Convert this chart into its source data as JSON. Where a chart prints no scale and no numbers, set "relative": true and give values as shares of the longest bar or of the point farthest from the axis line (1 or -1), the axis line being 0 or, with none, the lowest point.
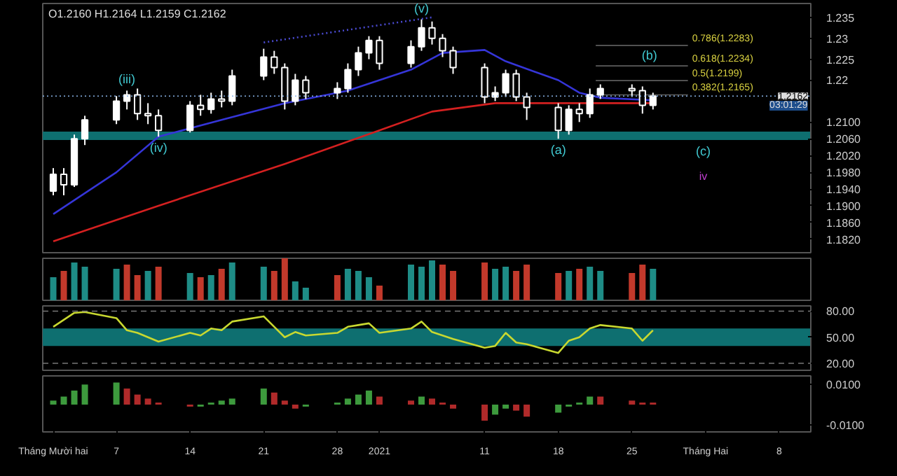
{
  "chart_data": [
    {
      "type": "candlestick",
      "title": "O1.2160 H1.2164 L1.2159 C1.2162",
      "color": "#ffffff",
      "x": [
        "2020-12-01",
        "2020-12-02",
        "2020-12-03",
        "2020-12-04",
        "2020-12-07",
        "2020-12-08",
        "2020-12-09",
        "2020-12-10",
        "2020-12-11",
        "2020-12-14",
        "2020-12-15",
        "2020-12-16",
        "2020-12-17",
        "2020-12-18",
        "2020-12-21",
        "2020-12-22",
        "2020-12-23",
        "2020-12-24",
        "2020-12-25",
        "2020-12-28",
        "2020-12-29",
        "2020-12-30",
        "2020-12-31",
        "2021-01-01",
        "2021-01-04",
        "2021-01-05",
        "2021-01-06",
        "2021-01-07",
        "2021-01-08",
        "2021-01-11",
        "2021-01-12",
        "2021-01-13",
        "2021-01-14",
        "2021-01-15",
        "2021-01-18",
        "2021-01-19",
        "2021-01-20",
        "2021-01-21",
        "2021-01-22",
        "2021-01-25",
        "2021-01-26",
        "2021-01-27"
      ],
      "ohlc": [
        [
          1.1935,
          1.199,
          1.1925,
          1.1975
        ],
        [
          1.1975,
          1.199,
          1.1925,
          1.195
        ],
        [
          1.195,
          1.207,
          1.1945,
          1.206
        ],
        [
          1.206,
          1.2115,
          1.2045,
          1.2105
        ],
        [
          1.2105,
          1.2162,
          1.2095,
          1.215
        ],
        [
          1.215,
          1.2175,
          1.213,
          1.2165
        ],
        [
          1.2165,
          1.218,
          1.2105,
          1.212
        ],
        [
          1.212,
          1.2145,
          1.2095,
          1.2115
        ],
        [
          1.2115,
          1.213,
          1.2065,
          1.208
        ],
        [
          1.208,
          1.215,
          1.2075,
          1.214
        ],
        [
          1.214,
          1.2165,
          1.2115,
          1.213
        ],
        [
          1.213,
          1.217,
          1.212,
          1.2155
        ],
        [
          1.2155,
          1.2175,
          1.2135,
          1.215
        ],
        [
          1.215,
          1.2225,
          1.214,
          1.221
        ],
        [
          1.221,
          1.2275,
          1.22,
          1.2255
        ],
        [
          1.2255,
          1.227,
          1.2215,
          1.223
        ],
        [
          1.223,
          1.224,
          1.213,
          1.215
        ],
        [
          1.215,
          1.2215,
          1.214,
          1.22
        ],
        [
          1.22,
          1.221,
          1.2155,
          1.217
        ],
        [
          1.217,
          1.2195,
          1.2155,
          1.218
        ],
        [
          1.218,
          1.224,
          1.217,
          1.2225
        ],
        [
          1.2225,
          1.228,
          1.221,
          1.2265
        ],
        [
          1.2265,
          1.2305,
          1.225,
          1.2295
        ],
        [
          1.2295,
          1.2305,
          1.2225,
          1.224
        ],
        [
          1.224,
          1.2295,
          1.223,
          1.228
        ],
        [
          1.228,
          1.2345,
          1.227,
          1.2325
        ],
        [
          1.2325,
          1.234,
          1.2285,
          1.23
        ],
        [
          1.23,
          1.231,
          1.2255,
          1.227
        ],
        [
          1.227,
          1.228,
          1.2215,
          1.223
        ],
        [
          1.223,
          1.224,
          1.2145,
          1.216
        ],
        [
          1.216,
          1.2185,
          1.215,
          1.217
        ],
        [
          1.217,
          1.2225,
          1.216,
          1.2215
        ],
        [
          1.2215,
          1.2225,
          1.215,
          1.216
        ],
        [
          1.216,
          1.217,
          1.2105,
          1.2135
        ],
        [
          1.2135,
          1.2145,
          1.206,
          1.208
        ],
        [
          1.208,
          1.214,
          1.207,
          1.213
        ],
        [
          1.213,
          1.2145,
          1.21,
          1.212
        ],
        [
          1.212,
          1.218,
          1.211,
          1.2165
        ],
        [
          1.2165,
          1.219,
          1.2155,
          1.218
        ],
        [
          1.218,
          1.219,
          1.216,
          1.2175
        ],
        [
          1.2175,
          1.2185,
          1.212,
          1.214
        ],
        [
          1.214,
          1.217,
          1.213,
          1.2162
        ]
      ],
      "series": [
        {
          "type": "line",
          "color": "#3535d8",
          "x": [
            "2020-12-01",
            "2020-12-07",
            "2020-12-11",
            "2020-12-17",
            "2020-12-23",
            "2020-12-29",
            "2021-01-04",
            "2021-01-07",
            "2021-01-11",
            "2021-01-13",
            "2021-01-18",
            "2021-01-20",
            "2021-01-22",
            "2021-01-27"
          ],
          "values": [
            1.188,
            1.198,
            1.2065,
            1.2105,
            1.2145,
            1.2175,
            1.2225,
            1.2265,
            1.2272,
            1.2245,
            1.22,
            1.217,
            1.2158,
            1.2152
          ]
        },
        {
          "type": "line",
          "color": "#d42020",
          "x": [
            "2020-12-01",
            "2020-12-11",
            "2020-12-23",
            "2021-01-01",
            "2021-01-06",
            "2021-01-12",
            "2021-01-27"
          ],
          "values": [
            1.1815,
            1.19,
            1.2,
            1.208,
            1.2125,
            1.2145,
            1.2145
          ]
        },
        {
          "type": "line",
          "color": "#4a4ad0",
          "line_style": "dotted",
          "x": [
            "2020-12-21",
            "2021-01-06"
          ],
          "values": [
            1.229,
            1.235
          ]
        }
      ],
      "ylim": [
        1.1788,
        1.2383
      ],
      "yticks": [
        1.235,
        1.23,
        1.225,
        1.22,
        {
          "value": 1.21,
          "label": "1.2100"
        },
        {
          "value": 1.206,
          "label": "1.2060"
        },
        {
          "value": 1.202,
          "label": "1.2020"
        },
        {
          "value": 1.198,
          "label": "1.1980"
        },
        {
          "value": 1.194,
          "label": "1.1940"
        },
        {
          "value": 1.19,
          "label": "1.1900"
        },
        {
          "value": 1.186,
          "label": "1.1860"
        },
        {
          "value": 1.182,
          "label": "1.1820"
        }
      ],
      "xlim": [
        "2020-11-30",
        "2021-02-11"
      ],
      "ref_lines": [
        {
          "axis": "y",
          "value": 1.2283,
          "label": "0.786(1.2283)",
          "color": "#5c5c5c",
          "line_style": "solid"
        },
        {
          "axis": "y",
          "value": 1.2234,
          "label": "0.618(1.2234)",
          "color": "#5c5c5c",
          "line_style": "solid"
        },
        {
          "axis": "y",
          "value": 1.2199,
          "label": "0.5(1.2199)",
          "color": "#5c5c5c",
          "line_style": "solid"
        },
        {
          "axis": "y",
          "value": 1.2165,
          "label": "0.382(1.2165)",
          "color": "#5c5c5c",
          "line_style": "solid"
        },
        {
          "axis": "y",
          "value": 1.2162,
          "label": "1.2162",
          "color": "#8ab4e8",
          "line_style": "dotted"
        }
      ],
      "bands": [
        {
          "axis": "y",
          "from": 1.2057,
          "to": 1.2077,
          "color": "#0e6f70"
        }
      ],
      "annotations": [
        {
          "text": "(iii)",
          "x": "2020-12-08",
          "y": 1.2175
        },
        {
          "text": "(iv)",
          "x": "2020-12-11",
          "y": 1.2065
        },
        {
          "text": "(v)",
          "x": "2021-01-05",
          "y": 1.2345
        },
        {
          "text": "(a)",
          "x": "2021-01-18",
          "y": 1.206
        },
        "(b)",
        "(c)",
        "iv",
        "03:01:29"
      ],
      "grid": false,
      "tick_labels": "y"
    },
    {
      "type": "bar",
      "relative": true,
      "x": [
        "2020-12-01",
        "2020-12-02",
        "2020-12-03",
        "2020-12-04",
        "2020-12-07",
        "2020-12-08",
        "2020-12-09",
        "2020-12-10",
        "2020-12-11",
        "2020-12-14",
        "2020-12-15",
        "2020-12-16",
        "2020-12-17",
        "2020-12-18",
        "2020-12-21",
        "2020-12-22",
        "2020-12-23",
        "2020-12-24",
        "2020-12-25",
        "2020-12-28",
        "2020-12-29",
        "2020-12-30",
        "2020-12-31",
        "2021-01-01",
        "2021-01-04",
        "2021-01-05",
        "2021-01-06",
        "2021-01-07",
        "2021-01-08",
        "2021-01-11",
        "2021-01-12",
        "2021-01-13",
        "2021-01-14",
        "2021-01-15",
        "2021-01-18",
        "2021-01-19",
        "2021-01-20",
        "2021-01-21",
        "2021-01-22",
        "2021-01-25",
        "2021-01-26",
        "2021-01-27"
      ],
      "values": [
        0.55,
        0.7,
        0.9,
        0.8,
        0.75,
        0.85,
        0.6,
        0.7,
        0.8,
        0.65,
        0.55,
        0.6,
        0.75,
        0.9,
        0.8,
        0.7,
        1.0,
        0.45,
        0.3,
        0.6,
        0.75,
        0.7,
        0.55,
        0.35,
        0.85,
        0.8,
        0.95,
        0.85,
        0.7,
        0.9,
        0.75,
        0.8,
        0.7,
        0.85,
        0.65,
        0.7,
        0.75,
        0.8,
        0.7,
        0.65,
        0.85,
        0.75
      ],
      "colors": [
        "#1e8c86",
        "#c2392b",
        "#1e8c86",
        "#1e8c86",
        "#1e8c86",
        "#c2392b",
        "#c2392b",
        "#1e8c86",
        "#c2392b",
        "#1e8c86",
        "#c2392b",
        "#1e8c86",
        "#c2392b",
        "#1e8c86",
        "#1e8c86",
        "#c2392b",
        "#c2392b",
        "#1e8c86",
        "#1e8c86",
        "#c2392b",
        "#1e8c86",
        "#1e8c86",
        "#1e8c86",
        "#c2392b",
        "#1e8c86",
        "#1e8c86",
        "#1e8c86",
        "#c2392b",
        "#c2392b",
        "#c2392b",
        "#1e8c86",
        "#1e8c86",
        "#c2392b",
        "#c2392b",
        "#c2392b",
        "#1e8c86",
        "#c2392b",
        "#1e8c86",
        "#1e8c86",
        "#c2392b",
        "#c2392b",
        "#1e8c86"
      ],
      "xlim": [
        "2020-11-30",
        "2021-02-11"
      ],
      "grid": false,
      "tick_labels": false
    },
    {
      "type": "line",
      "color": "#c8d830",
      "x": [
        "2020-12-01",
        "2020-12-02",
        "2020-12-03",
        "2020-12-04",
        "2020-12-07",
        "2020-12-08",
        "2020-12-09",
        "2020-12-10",
        "2020-12-11",
        "2020-12-14",
        "2020-12-15",
        "2020-12-16",
        "2020-12-17",
        "2020-12-18",
        "2020-12-21",
        "2020-12-22",
        "2020-12-23",
        "2020-12-24",
        "2020-12-25",
        "2020-12-28",
        "2020-12-29",
        "2020-12-30",
        "2020-12-31",
        "2021-01-01",
        "2021-01-04",
        "2021-01-05",
        "2021-01-06",
        "2021-01-07",
        "2021-01-08",
        "2021-01-11",
        "2021-01-12",
        "2021-01-13",
        "2021-01-14",
        "2021-01-15",
        "2021-01-18",
        "2021-01-19",
        "2021-01-20",
        "2021-01-21",
        "2021-01-22",
        "2021-01-25",
        "2021-01-26",
        "2021-01-27"
      ],
      "values": [
        62,
        70,
        78,
        79,
        72,
        58,
        55,
        50,
        45,
        55,
        52,
        60,
        58,
        68,
        74,
        62,
        50,
        56,
        52,
        55,
        62,
        64,
        66,
        55,
        60,
        68,
        56,
        52,
        48,
        38,
        40,
        55,
        44,
        42,
        32,
        46,
        50,
        60,
        64,
        60,
        46,
        58
      ],
      "ylim": [
        12,
        86
      ],
      "yticks": [
        {
          "value": 80,
          "label": "80.00"
        },
        {
          "value": 50,
          "label": "50.00"
        },
        {
          "value": 20,
          "label": "20.00"
        }
      ],
      "xlim": [
        "2020-11-30",
        "2021-02-11"
      ],
      "bands": [
        {
          "axis": "y",
          "from": 40,
          "to": 60,
          "color": "#0e6f70"
        }
      ],
      "ref_lines": [
        {
          "axis": "y",
          "value": 80,
          "color": "#777777",
          "line_style": "dashed"
        },
        {
          "axis": "y",
          "value": 20,
          "color": "#777777",
          "line_style": "dashed"
        }
      ],
      "grid": false,
      "tick_labels": "y"
    },
    {
      "type": "bar",
      "x": [
        "2020-12-01",
        "2020-12-02",
        "2020-12-03",
        "2020-12-04",
        "2020-12-07",
        "2020-12-08",
        "2020-12-09",
        "2020-12-10",
        "2020-12-11",
        "2020-12-14",
        "2020-12-15",
        "2020-12-16",
        "2020-12-17",
        "2020-12-18",
        "2020-12-21",
        "2020-12-22",
        "2020-12-23",
        "2020-12-24",
        "2020-12-25",
        "2020-12-28",
        "2020-12-29",
        "2020-12-30",
        "2020-12-31",
        "2021-01-01",
        "2021-01-04",
        "2021-01-05",
        "2021-01-06",
        "2021-01-07",
        "2021-01-08",
        "2021-01-11",
        "2021-01-12",
        "2021-01-13",
        "2021-01-14",
        "2021-01-15",
        "2021-01-18",
        "2021-01-19",
        "2021-01-20",
        "2021-01-21",
        "2021-01-22",
        "2021-01-25",
        "2021-01-26",
        "2021-01-27"
      ],
      "values": [
        0.002,
        0.004,
        0.007,
        0.01,
        0.011,
        0.008,
        0.005,
        0.003,
        0.001,
        -0.001,
        -0.001,
        0.001,
        0.002,
        0.003,
        0.008,
        0.006,
        0.002,
        -0.002,
        -0.001,
        0.001,
        0.003,
        0.005,
        0.007,
        0.004,
        0.002,
        0.004,
        0.003,
        0.001,
        -0.002,
        -0.008,
        -0.005,
        -0.002,
        -0.003,
        -0.006,
        -0.004,
        -0.001,
        0.001,
        0.004,
        0.004,
        0.002,
        0.001,
        0.001
      ],
      "colors": [
        "#3d9a3d",
        "#3d9a3d",
        "#3d9a3d",
        "#3d9a3d",
        "#3d9a3d",
        "#b02a2a",
        "#b02a2a",
        "#b02a2a",
        "#b02a2a",
        "#b02a2a",
        "#3d9a3d",
        "#3d9a3d",
        "#3d9a3d",
        "#3d9a3d",
        "#3d9a3d",
        "#b02a2a",
        "#b02a2a",
        "#b02a2a",
        "#3d9a3d",
        "#3d9a3d",
        "#3d9a3d",
        "#3d9a3d",
        "#3d9a3d",
        "#b02a2a",
        "#b02a2a",
        "#3d9a3d",
        "#b02a2a",
        "#b02a2a",
        "#b02a2a",
        "#b02a2a",
        "#3d9a3d",
        "#3d9a3d",
        "#b02a2a",
        "#b02a2a",
        "#3d9a3d",
        "#3d9a3d",
        "#3d9a3d",
        "#3d9a3d",
        "#b02a2a",
        "#b02a2a",
        "#b02a2a",
        "#b02a2a"
      ],
      "ylim": [
        -0.0136,
        0.0143
      ],
      "yticks": [
        {
          "value": 0.01,
          "label": "0.0100"
        },
        {
          "value": -0.01,
          "label": "-0.0100"
        }
      ],
      "xlim": [
        "2020-11-30",
        "2021-02-11"
      ],
      "xticks": [
        {
          "value": "2020-12-01",
          "label": "Tháng Mười hai"
        },
        {
          "value": "2020-12-07",
          "label": "7"
        },
        {
          "value": "2020-12-14",
          "label": "14"
        },
        {
          "value": "2020-12-21",
          "label": "21"
        },
        {
          "value": "2020-12-28",
          "label": "28"
        },
        {
          "value": "2021-01-01",
          "label": "2021"
        },
        {
          "value": "2021-01-11",
          "label": "11"
        },
        {
          "value": "2021-01-18",
          "label": "18"
        },
        {
          "value": "2021-01-25",
          "label": "25"
        },
        {
          "value": "2021-02-01",
          "label": "Tháng Hai"
        },
        {
          "value": "2021-02-08",
          "label": "8"
        }
      ],
      "grid": false
    }
  ]
}
